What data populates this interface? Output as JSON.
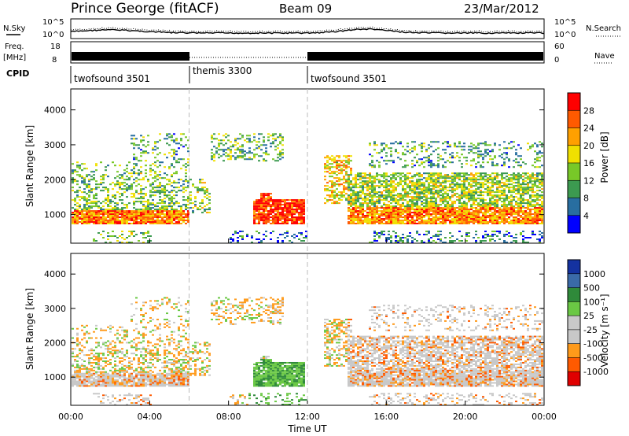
{
  "header": {
    "station": "Prince George (fitACF)",
    "beam": "Beam 09",
    "date": "23/Mar/2012"
  },
  "strips": {
    "nsky_label": "N.Sky",
    "nsearch_label": "N.Search",
    "noise_ticks_left": [
      "10^5",
      "10^0"
    ],
    "noise_ticks_right": [
      "10^5",
      "10^0"
    ],
    "freq_label_1": "Freq.",
    "freq_label_2": "[MHz]",
    "freq_ticks": [
      "18",
      "8"
    ],
    "nave_label": "Nave",
    "nave_ticks": [
      "60",
      "0"
    ],
    "cpid_label": "CPID",
    "cpid_segments": [
      {
        "label": "twofsound 3501",
        "start_h": 0,
        "end_h": 6
      },
      {
        "label": "themis 3300",
        "start_h": 6,
        "end_h": 12
      },
      {
        "label": "twofsound 3501",
        "start_h": 12,
        "end_h": 24
      }
    ]
  },
  "chart_data": [
    {
      "type": "heatmap",
      "panel": "power",
      "ylabel": "Slant Range [km]",
      "xlabel": "",
      "xlim": [
        0,
        24
      ],
      "ylim": [
        180,
        4600
      ],
      "yticks": [
        1000,
        2000,
        3000,
        4000
      ],
      "colorbar_label": "Power [dB]",
      "colorbar_levels": [
        "28",
        "24",
        "20",
        "16",
        "12",
        "8",
        "4"
      ],
      "colorbar_colors": [
        "#ff0000",
        "#ff5a00",
        "#ffa000",
        "#f0e000",
        "#78c828",
        "#3c9a50",
        "#286ea0",
        "#0000ff"
      ],
      "echo_regions": [
        {
          "t0": 0.0,
          "t1": 6.0,
          "r0": 700,
          "r1": 2700,
          "note": "scatter band"
        },
        {
          "t0": 9.0,
          "t1": 11.8,
          "r0": 700,
          "r1": 1500,
          "note": "strong echoes"
        },
        {
          "t0": 13.0,
          "t1": 24.0,
          "r0": 600,
          "r1": 2300,
          "note": "scatter band"
        }
      ]
    },
    {
      "type": "heatmap",
      "panel": "velocity",
      "ylabel": "Slant Range [km]",
      "xlabel": "Time UT",
      "xlim": [
        0,
        24
      ],
      "ylim": [
        180,
        4600
      ],
      "yticks": [
        1000,
        2000,
        3000,
        4000
      ],
      "xticks": [
        "00:00",
        "04:00",
        "08:00",
        "12:00",
        "16:00",
        "20:00",
        "00:00"
      ],
      "colorbar_label": "Velocity [m s⁻¹]",
      "colorbar_levels": [
        "1000",
        "500",
        "100",
        "25",
        "-25",
        "-100",
        "-500",
        "-1000"
      ],
      "colorbar_colors": [
        "#1432a0",
        "#3a6aa8",
        "#2f8a3a",
        "#6ac844",
        "#c8c8c8",
        "#c8c8c8",
        "#ff9a1a",
        "#ff5a00",
        "#e00000"
      ]
    }
  ]
}
